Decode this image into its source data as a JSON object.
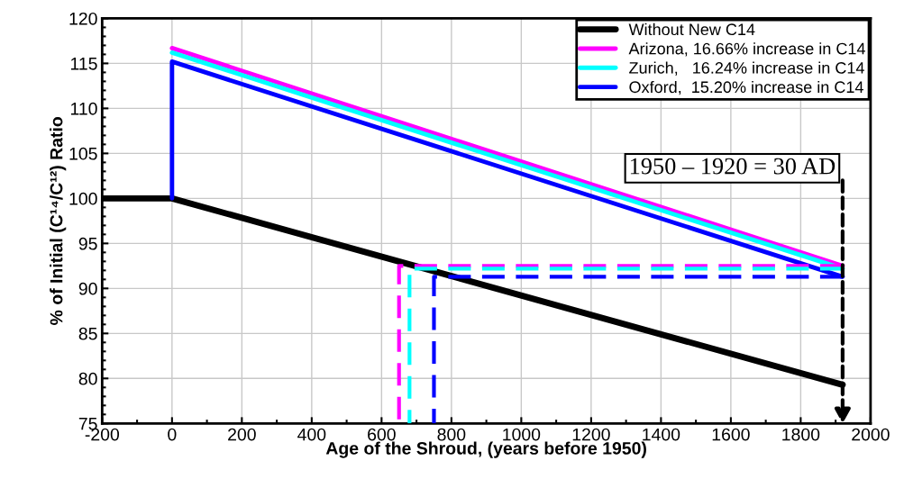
{
  "chart_data": {
    "type": "line",
    "xlabel": "Age of the Shroud, (years before 1950)",
    "ylabel": "% of Initial (C¹⁴/C¹²) Ratio",
    "series": [
      {
        "name": "Without New C14",
        "color": "#000000",
        "x": [
          -200,
          0,
          1920
        ],
        "values": [
          100,
          100,
          79.3
        ]
      },
      {
        "name": "Arizona, 16.66% increase in C14",
        "color": "#ff00ff",
        "x": [
          0,
          1920
        ],
        "values": [
          116.7,
          92.5
        ]
      },
      {
        "name": "Zurich,   16.24% increase in C14",
        "color": "#00ffff",
        "x": [
          0,
          1920
        ],
        "values": [
          116.2,
          92.2
        ]
      },
      {
        "name": "Oxford,  15.20% increase in C14",
        "color": "#0000ff",
        "x": [
          0,
          0,
          1920
        ],
        "values": [
          100,
          115.2,
          91.3
        ]
      },
      {
        "color": "#ff00ff",
        "line_style": "dashed",
        "x": [
          1920,
          650,
          650
        ],
        "values": [
          92.5,
          92.5,
          75
        ]
      },
      {
        "color": "#00ffff",
        "line_style": "dashed",
        "x": [
          1920,
          680,
          680
        ],
        "values": [
          92.2,
          92.2,
          75
        ]
      },
      {
        "color": "#0000ff",
        "line_style": "dashed",
        "x": [
          1920,
          750,
          750
        ],
        "values": [
          91.3,
          91.3,
          75
        ]
      }
    ],
    "annotations": [
      "1950 – 1920 = 30 AD"
    ],
    "xlim": [
      -200,
      2000
    ],
    "xticks": [
      -200,
      0,
      200,
      400,
      600,
      800,
      1000,
      1200,
      1400,
      1600,
      1800,
      2000
    ],
    "ylim": [
      75,
      120
    ],
    "yticks": [
      75,
      80,
      85,
      90,
      95,
      100,
      105,
      110,
      115,
      120
    ],
    "grid": true,
    "legend": "top right",
    "line_style": "solid",
    "marker": "none"
  }
}
